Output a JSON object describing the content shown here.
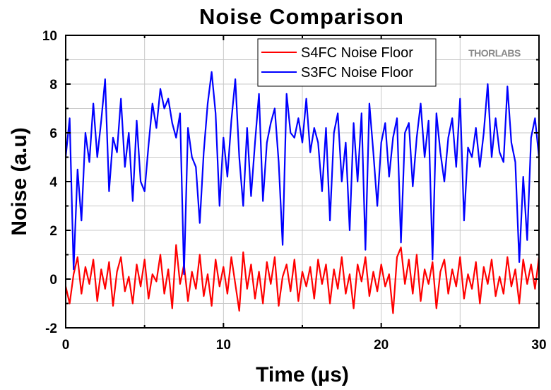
{
  "chart_data": {
    "type": "line",
    "title": "Noise Comparison",
    "xlabel": "Time (µs)",
    "ylabel": "Noise (a.u)",
    "xlim": [
      0,
      30
    ],
    "ylim": [
      -2,
      10
    ],
    "xticks": [
      0,
      10,
      20,
      30
    ],
    "xtick_labels": [
      "0",
      "10",
      "20",
      "30"
    ],
    "yticks": [
      -2,
      0,
      2,
      4,
      6,
      8,
      10
    ],
    "ytick_labels": [
      "-2",
      "0",
      "2",
      "4",
      "6",
      "8",
      "10"
    ],
    "grid": true,
    "legend_position": "top-right",
    "watermark": "THORLABS",
    "series": [
      {
        "name": "S4FC Noise Floor",
        "color": "#ff0000",
        "x": [
          0,
          0.25,
          0.5,
          0.75,
          1,
          1.25,
          1.5,
          1.75,
          2,
          2.25,
          2.5,
          2.75,
          3,
          3.25,
          3.5,
          3.75,
          4,
          4.25,
          4.5,
          4.75,
          5,
          5.25,
          5.5,
          5.75,
          6,
          6.25,
          6.5,
          6.75,
          7,
          7.25,
          7.5,
          7.75,
          8,
          8.25,
          8.5,
          8.75,
          9,
          9.25,
          9.5,
          9.75,
          10,
          10.25,
          10.5,
          10.75,
          11,
          11.25,
          11.5,
          11.75,
          12,
          12.25,
          12.5,
          12.75,
          13,
          13.25,
          13.5,
          13.75,
          14,
          14.25,
          14.5,
          14.75,
          15,
          15.25,
          15.5,
          15.75,
          16,
          16.25,
          16.5,
          16.75,
          17,
          17.25,
          17.5,
          17.75,
          18,
          18.25,
          18.5,
          18.75,
          19,
          19.25,
          19.5,
          19.75,
          20,
          20.25,
          20.5,
          20.75,
          21,
          21.25,
          21.5,
          21.75,
          22,
          22.25,
          22.5,
          22.75,
          23,
          23.25,
          23.5,
          23.75,
          24,
          24.25,
          24.5,
          24.75,
          25,
          25.25,
          25.5,
          25.75,
          26,
          26.25,
          26.5,
          26.75,
          27,
          27.25,
          27.5,
          27.75,
          28,
          28.25,
          28.5,
          28.75,
          29,
          29.25,
          29.5,
          29.75,
          30
        ],
        "values": [
          -0.3,
          -1.0,
          0.2,
          0.9,
          -0.6,
          0.5,
          -0.2,
          0.8,
          -0.9,
          0.4,
          -0.4,
          0.7,
          -1.1,
          0.3,
          0.9,
          -0.5,
          0.1,
          -1.0,
          0.6,
          -0.3,
          0.8,
          -0.8,
          0.2,
          -0.1,
          1.0,
          -0.6,
          0.4,
          -1.2,
          1.4,
          -0.2,
          0.6,
          -0.9,
          0.3,
          -0.4,
          1.0,
          -0.7,
          0.2,
          -1.1,
          0.8,
          -0.3,
          0.5,
          -0.6,
          0.9,
          -0.2,
          -1.3,
          1.1,
          -0.4,
          0.6,
          -0.8,
          0.3,
          -1.0,
          0.7,
          -0.2,
          0.9,
          -1.1,
          0.1,
          0.6,
          -0.5,
          0.8,
          -0.9,
          0.3,
          -0.3,
          0.5,
          -0.8,
          0.8,
          -0.2,
          0.6,
          -1.0,
          0.4,
          -0.4,
          0.9,
          -0.6,
          0.2,
          -1.2,
          0.6,
          -0.1,
          0.9,
          -0.7,
          0.3,
          -0.5,
          0.6,
          -0.3,
          0.2,
          -1.4,
          0.9,
          1.3,
          -0.2,
          0.8,
          -0.6,
          1.0,
          -0.9,
          0.4,
          -0.2,
          0.7,
          -1.2,
          0.3,
          0.8,
          -0.6,
          0.4,
          -0.3,
          0.9,
          -0.8,
          0.2,
          -0.4,
          0.7,
          -1.0,
          0.5,
          -0.2,
          0.8,
          -0.7,
          0.1,
          -0.6,
          0.9,
          -0.3,
          0.4,
          -1.0,
          0.8,
          -0.2,
          0.6,
          -0.4,
          0.9
        ]
      },
      {
        "name": "S3FC Noise Floor",
        "color": "#0000ff",
        "x": [
          0,
          0.25,
          0.5,
          0.75,
          1,
          1.25,
          1.5,
          1.75,
          2,
          2.25,
          2.5,
          2.75,
          3,
          3.25,
          3.5,
          3.75,
          4,
          4.25,
          4.5,
          4.75,
          5,
          5.25,
          5.5,
          5.75,
          6,
          6.25,
          6.5,
          6.75,
          7,
          7.25,
          7.5,
          7.75,
          8,
          8.25,
          8.5,
          8.75,
          9,
          9.25,
          9.5,
          9.75,
          10,
          10.25,
          10.5,
          10.75,
          11,
          11.25,
          11.5,
          11.75,
          12,
          12.25,
          12.5,
          12.75,
          13,
          13.25,
          13.5,
          13.75,
          14,
          14.25,
          14.5,
          14.75,
          15,
          15.25,
          15.5,
          15.75,
          16,
          16.25,
          16.5,
          16.75,
          17,
          17.25,
          17.5,
          17.75,
          18,
          18.25,
          18.5,
          18.75,
          19,
          19.25,
          19.5,
          19.75,
          20,
          20.25,
          20.5,
          20.75,
          21,
          21.25,
          21.5,
          21.75,
          22,
          22.25,
          22.5,
          22.75,
          23,
          23.25,
          23.5,
          23.75,
          24,
          24.25,
          24.5,
          24.75,
          25,
          25.25,
          25.5,
          25.75,
          26,
          26.25,
          26.5,
          26.75,
          27,
          27.25,
          27.5,
          27.75,
          28,
          28.25,
          28.5,
          28.75,
          29,
          29.25,
          29.5,
          29.75,
          30
        ],
        "values": [
          5.0,
          6.6,
          0.4,
          4.5,
          2.4,
          6.0,
          4.8,
          7.2,
          5.0,
          6.5,
          8.2,
          3.6,
          5.8,
          5.2,
          7.4,
          4.6,
          6.0,
          3.2,
          6.5,
          4.0,
          3.6,
          5.5,
          7.2,
          6.2,
          7.8,
          7.0,
          7.4,
          6.4,
          5.8,
          6.8,
          0.2,
          6.2,
          5.0,
          4.6,
          2.3,
          5.2,
          7.2,
          8.5,
          6.8,
          3.0,
          5.8,
          4.2,
          6.5,
          8.2,
          5.0,
          3.0,
          6.2,
          3.4,
          5.6,
          7.6,
          3.2,
          5.6,
          6.4,
          7.0,
          4.8,
          1.4,
          7.6,
          6.0,
          5.8,
          6.6,
          5.6,
          7.4,
          5.2,
          6.2,
          5.6,
          3.6,
          6.2,
          2.4,
          6.0,
          6.8,
          4.0,
          5.6,
          2.0,
          6.4,
          4.0,
          6.8,
          1.2,
          7.2,
          5.2,
          3.0,
          5.6,
          6.4,
          4.2,
          5.8,
          6.6,
          1.5,
          6.0,
          6.4,
          3.8,
          5.8,
          7.2,
          5.0,
          6.5,
          0.8,
          6.8,
          5.2,
          4.0,
          5.8,
          6.6,
          4.6,
          7.4,
          2.4,
          5.4,
          5.0,
          6.2,
          4.6,
          6.0,
          8.0,
          5.0,
          6.6,
          5.2,
          4.8,
          7.9,
          5.6,
          4.8,
          0.7,
          4.2,
          1.6,
          5.8,
          6.6,
          5.0
        ]
      }
    ]
  }
}
